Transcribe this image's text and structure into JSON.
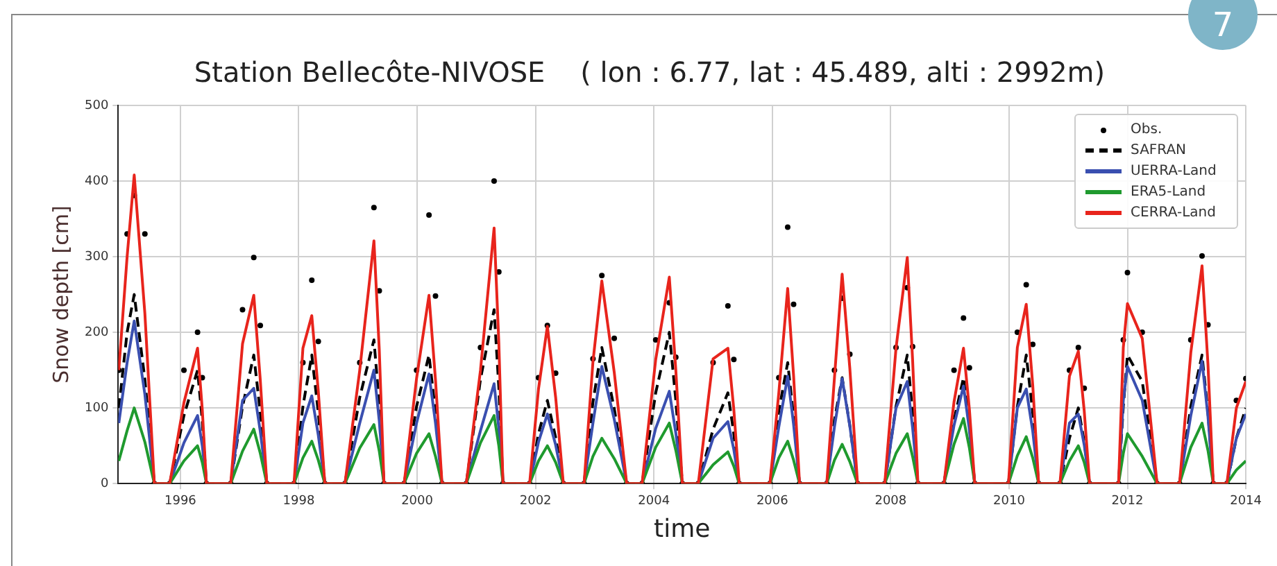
{
  "chart_data": {
    "type": "line",
    "title": "Station Bellecôte-NIVOSE    ( lon : 6.77, lat : 45.489, alti : 2992m)",
    "xlabel": "time",
    "ylabel": "Snow depth [cm]",
    "annotations": [
      "7"
    ],
    "x": [
      1994.96,
      1995.1,
      1995.22,
      1995.4,
      1995.56,
      1995.82,
      1996.06,
      1996.29,
      1996.37,
      1996.44,
      1996.85,
      1997.05,
      1997.24,
      1997.35,
      1997.46,
      1997.92,
      1998.07,
      1998.22,
      1998.33,
      1998.44,
      1998.78,
      1999.03,
      1999.27,
      1999.36,
      1999.44,
      1999.78,
      1999.99,
      2000.2,
      2000.31,
      2000.42,
      2000.83,
      2001.07,
      2001.3,
      2001.38,
      2001.45,
      2001.9,
      2002.05,
      2002.2,
      2002.34,
      2002.47,
      2002.82,
      2002.97,
      2003.12,
      2003.33,
      2003.54,
      2003.8,
      2004.03,
      2004.26,
      2004.37,
      2004.48,
      2004.75,
      2005.0,
      2005.25,
      2005.35,
      2005.44,
      2005.96,
      2006.11,
      2006.26,
      2006.36,
      2006.46,
      2006.92,
      2007.05,
      2007.18,
      2007.31,
      2007.44,
      2007.9,
      2008.09,
      2008.28,
      2008.37,
      2008.46,
      2008.9,
      2009.07,
      2009.23,
      2009.33,
      2009.42,
      2009.99,
      2010.14,
      2010.29,
      2010.4,
      2010.5,
      2010.86,
      2011.02,
      2011.17,
      2011.27,
      2011.36,
      2011.85,
      2011.93,
      2012.0,
      2012.25,
      2012.5,
      2012.88,
      2013.07,
      2013.26,
      2013.36,
      2013.45,
      2013.68,
      2013.84,
      2014.0
    ],
    "series": [
      {
        "name": "Obs.",
        "type": "scatter",
        "marker": "circle",
        "color": "#000000",
        "values": [
          150,
          330,
          381,
          330,
          0,
          0,
          150,
          200,
          140,
          0,
          0,
          230,
          299,
          209,
          0,
          0,
          160,
          269,
          188,
          0,
          0,
          160,
          365,
          255,
          0,
          0,
          150,
          355,
          248,
          0,
          0,
          180,
          400,
          280,
          0,
          0,
          140,
          209,
          146,
          0,
          0,
          165,
          275,
          192,
          0,
          0,
          190,
          239,
          167,
          0,
          0,
          160,
          235,
          164,
          0,
          0,
          140,
          339,
          237,
          0,
          0,
          150,
          245,
          171,
          0,
          0,
          180,
          259,
          181,
          0,
          0,
          150,
          219,
          153,
          0,
          0,
          200,
          263,
          184,
          0,
          0,
          150,
          180,
          126,
          0,
          0,
          190,
          279,
          200,
          0,
          0,
          190,
          301,
          210,
          0,
          0,
          110,
          139
        ]
      },
      {
        "name": "SAFRAN",
        "type": "line",
        "line_style": "dashed",
        "color": "#000000",
        "values": [
          100,
          200,
          250,
          138,
          0,
          0,
          90,
          150,
          83,
          0,
          0,
          102,
          170,
          94,
          0,
          0,
          102,
          170,
          94,
          0,
          0,
          114,
          190,
          105,
          0,
          0,
          102,
          170,
          94,
          0,
          0,
          138,
          230,
          127,
          0,
          0,
          66,
          110,
          61,
          0,
          0,
          108,
          180,
          99,
          0,
          0,
          120,
          200,
          110,
          0,
          0,
          72,
          120,
          66,
          0,
          0,
          96,
          160,
          88,
          0,
          0,
          84,
          140,
          77,
          0,
          0,
          102,
          170,
          94,
          0,
          0,
          84,
          140,
          77,
          0,
          0,
          102,
          170,
          94,
          0,
          0,
          60,
          100,
          55,
          0,
          0,
          102,
          170,
          135,
          0,
          0,
          102,
          170,
          94,
          0,
          0,
          60,
          100
        ]
      },
      {
        "name": "UERRA-Land",
        "type": "line",
        "line_style": "solid",
        "color": "#3a4fb0",
        "values": [
          80,
          160,
          215,
          118,
          0,
          0,
          54,
          90,
          50,
          0,
          0,
          110,
          126,
          69,
          0,
          0,
          80,
          116,
          64,
          0,
          0,
          80,
          150,
          83,
          0,
          0,
          80,
          145,
          80,
          0,
          0,
          70,
          132,
          73,
          0,
          0,
          55,
          92,
          51,
          0,
          0,
          80,
          155,
          85,
          0,
          0,
          73,
          122,
          67,
          0,
          0,
          60,
          82,
          45,
          0,
          0,
          75,
          142,
          78,
          0,
          0,
          75,
          139,
          76,
          0,
          0,
          100,
          135,
          74,
          0,
          0,
          77,
          129,
          71,
          0,
          0,
          100,
          125,
          69,
          0,
          0,
          80,
          92,
          51,
          0,
          0,
          110,
          155,
          110,
          0,
          0,
          90,
          162,
          89,
          0,
          0,
          60,
          92
        ]
      },
      {
        "name": "ERA5-Land",
        "type": "line",
        "line_style": "solid",
        "color": "#1f9a2e",
        "values": [
          30,
          70,
          100,
          55,
          0,
          0,
          30,
          50,
          28,
          0,
          0,
          43,
          72,
          40,
          0,
          0,
          34,
          56,
          31,
          0,
          0,
          47,
          78,
          43,
          0,
          0,
          40,
          66,
          36,
          0,
          0,
          54,
          90,
          50,
          0,
          0,
          30,
          50,
          28,
          0,
          0,
          36,
          60,
          33,
          0,
          0,
          48,
          80,
          44,
          0,
          0,
          25,
          42,
          23,
          0,
          0,
          34,
          56,
          31,
          0,
          0,
          31,
          52,
          29,
          0,
          0,
          40,
          66,
          36,
          0,
          0,
          52,
          86,
          47,
          0,
          0,
          37,
          62,
          34,
          0,
          0,
          30,
          50,
          28,
          0,
          0,
          40,
          66,
          36,
          0,
          0,
          48,
          80,
          44,
          0,
          0,
          18,
          30
        ]
      },
      {
        "name": "CERRA-Land",
        "type": "line",
        "line_style": "solid",
        "color": "#e8241c",
        "values": [
          150,
          300,
          408,
          225,
          0,
          0,
          107,
          179,
          98,
          0,
          0,
          185,
          249,
          137,
          0,
          0,
          179,
          222,
          122,
          0,
          0,
          150,
          321,
          177,
          0,
          0,
          139,
          249,
          137,
          0,
          0,
          150,
          338,
          186,
          0,
          0,
          125,
          208,
          114,
          0,
          0,
          161,
          268,
          147,
          0,
          0,
          164,
          273,
          150,
          0,
          0,
          165,
          179,
          98,
          0,
          0,
          120,
          258,
          142,
          0,
          0,
          140,
          277,
          152,
          0,
          0,
          179,
          299,
          164,
          0,
          0,
          108,
          179,
          98,
          0,
          0,
          180,
          237,
          130,
          0,
          0,
          142,
          175,
          96,
          0,
          0,
          180,
          238,
          192,
          0,
          0,
          173,
          288,
          158,
          0,
          0,
          100,
          135
        ]
      }
    ],
    "xlim": [
      1994.95,
      2014
    ],
    "xticks": [
      1996,
      1998,
      2000,
      2002,
      2004,
      2006,
      2008,
      2010,
      2012,
      2014
    ],
    "ylim": [
      0,
      500
    ],
    "yticks": [
      0,
      100,
      200,
      300,
      400,
      500
    ],
    "grid": true,
    "legend": "top right"
  }
}
